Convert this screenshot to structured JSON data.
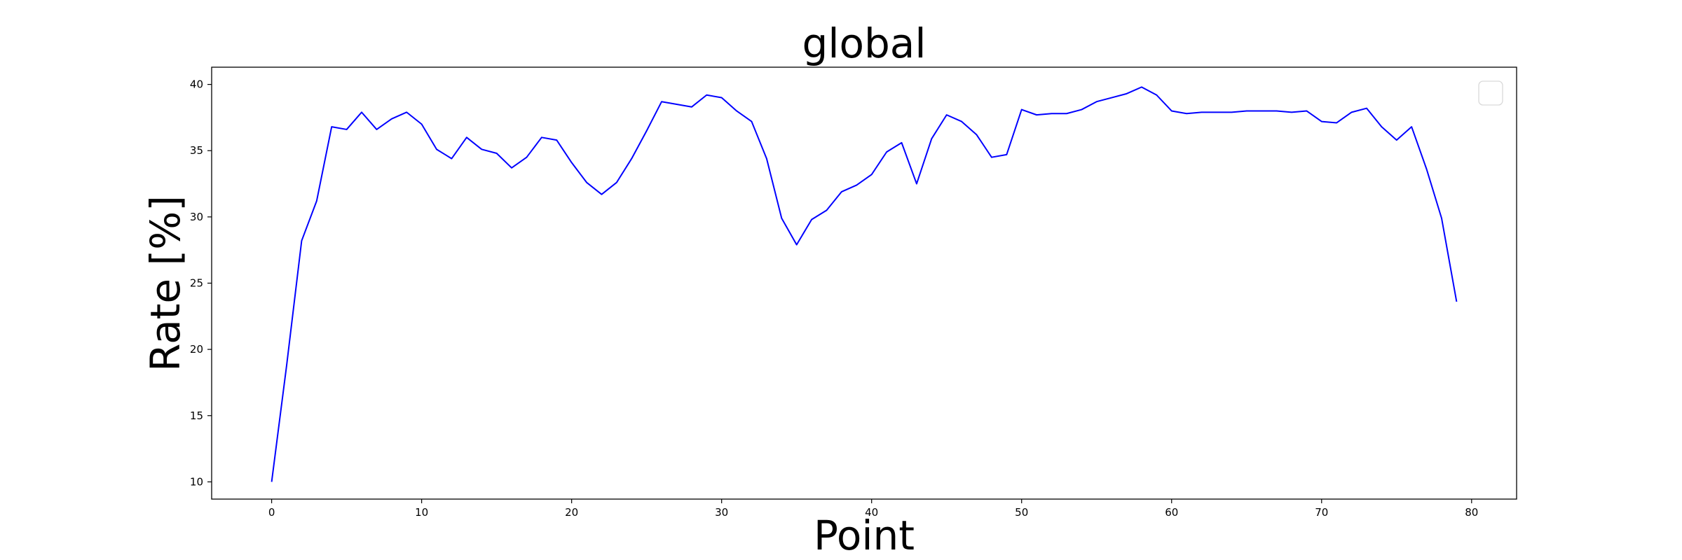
{
  "chart_data": {
    "type": "line",
    "title": "global",
    "xlabel": "Point",
    "ylabel": "Rate [%]",
    "xlim": [
      -4,
      83
    ],
    "ylim": [
      8.7,
      41.3
    ],
    "xticks": [
      0,
      10,
      20,
      30,
      40,
      50,
      60,
      70,
      80
    ],
    "yticks": [
      10,
      15,
      20,
      25,
      30,
      35,
      40
    ],
    "grid": false,
    "legend": "top-right (empty)",
    "series": [
      {
        "color": "#0000ff",
        "x": [
          0,
          1,
          2,
          3,
          4,
          5,
          6,
          7,
          8,
          9,
          10,
          11,
          12,
          13,
          14,
          15,
          16,
          17,
          18,
          19,
          20,
          21,
          22,
          23,
          24,
          25,
          26,
          27,
          28,
          29,
          30,
          31,
          32,
          33,
          34,
          35,
          36,
          37,
          38,
          39,
          40,
          41,
          42,
          43,
          44,
          45,
          46,
          47,
          48,
          49,
          50,
          51,
          52,
          53,
          54,
          55,
          56,
          57,
          58,
          59,
          60,
          61,
          62,
          63,
          64,
          65,
          66,
          67,
          68,
          69,
          70,
          71,
          72,
          73,
          74,
          75,
          76,
          77,
          78,
          79
        ],
        "values": [
          10.0,
          18.8,
          28.2,
          31.2,
          36.8,
          36.6,
          37.9,
          36.6,
          37.4,
          37.9,
          37.0,
          35.1,
          34.4,
          36.0,
          35.1,
          34.8,
          33.7,
          34.5,
          36.0,
          35.8,
          34.1,
          32.6,
          31.7,
          32.6,
          34.4,
          36.5,
          38.7,
          38.5,
          38.3,
          39.2,
          39.0,
          38.0,
          37.2,
          34.4,
          29.9,
          27.9,
          29.8,
          30.5,
          31.9,
          32.4,
          33.2,
          34.9,
          35.6,
          32.5,
          35.9,
          37.7,
          37.2,
          36.2,
          34.5,
          34.7,
          38.1,
          37.7,
          37.8,
          37.8,
          38.1,
          38.7,
          39.0,
          39.3,
          39.8,
          39.2,
          38.0,
          37.8,
          37.9,
          37.9,
          37.9,
          38.0,
          38.0,
          38.0,
          37.9,
          38.0,
          37.2,
          37.1,
          37.9,
          38.2,
          36.8,
          35.8,
          36.8,
          33.6,
          29.9,
          23.6
        ]
      }
    ]
  }
}
